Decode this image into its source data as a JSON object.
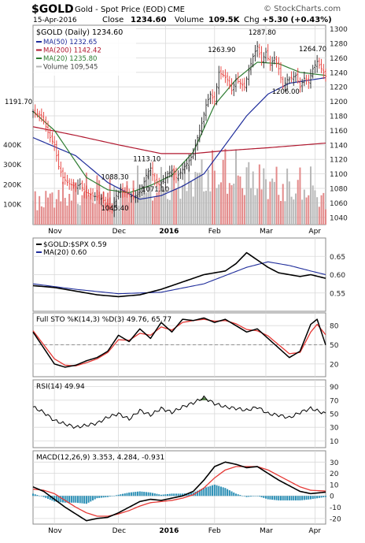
{
  "header": {
    "symbol": "$GOLD",
    "description": "Gold - Spot Price (EOD)",
    "exchange": "CME",
    "watermark": "© StockCharts.com",
    "date": "15-Apr-2016",
    "close_label": "Close",
    "close_value": "1234.60",
    "volume_label": "Volume",
    "volume_value": "109.5K",
    "chg_label": "Chg",
    "chg_value": "+5.30 (+0.43%)"
  },
  "colors": {
    "bg": "#ffffff",
    "grid": "#d9d9d9",
    "up": "#222222",
    "down": "#e53935",
    "ma50": "#1f2d9b",
    "ma200": "#b0182f",
    "ma20": "#2e7d32",
    "volume": "#b8b8b8",
    "volume_red": "#e38a8a",
    "black": "#000000",
    "blue_line": "#1f2d9b",
    "red_line": "#e53935",
    "rsi_up_fill": "#4a7a3b",
    "rsi_dn_fill": "#a8504a",
    "hist": "#2b8fb5"
  },
  "time_axis": {
    "labels": [
      "Nov",
      "Dec",
      "2016",
      "Feb",
      "Mar",
      "Apr"
    ],
    "positions": [
      10,
      40,
      62,
      85,
      109,
      132
    ]
  },
  "chart_data": [
    {
      "type": "candlestick",
      "title": "$GOLD (Daily) 1234.60",
      "legend": [
        {
          "name": "MA(50) 1232.65",
          "color": "ma50"
        },
        {
          "name": "MA(200) 1142.42",
          "color": "ma200"
        },
        {
          "name": "MA(20) 1235.80",
          "color": "ma20"
        },
        {
          "name": "Volume 109,545",
          "color": "volume"
        }
      ],
      "ylim": [
        1030,
        1305
      ],
      "yticks": [
        1040,
        1060,
        1080,
        1100,
        1120,
        1140,
        1160,
        1180,
        1200,
        1220,
        1240,
        1260,
        1280,
        1300
      ],
      "volume_ticks": [
        "100K",
        "200K",
        "300K",
        "400K"
      ],
      "volume_tick_values": [
        100,
        200,
        300,
        400
      ],
      "annotations": [
        {
          "text": "1191.70",
          "x": 1,
          "y": 1191.7
        },
        {
          "text": "1113.10",
          "x": 52,
          "y": 1113.1
        },
        {
          "text": "1088.30",
          "x": 37,
          "y": 1088.3
        },
        {
          "text": "1071.10",
          "x": 56,
          "y": 1071.1
        },
        {
          "text": "1045.40",
          "x": 37,
          "y": 1045.4
        },
        {
          "text": "1263.90",
          "x": 87,
          "y": 1263.9
        },
        {
          "text": "1287.80",
          "x": 106,
          "y": 1287.8
        },
        {
          "text": "1264.70",
          "x": 132,
          "y": 1264.7
        },
        {
          "text": "1206.00",
          "x": 117,
          "y": 1206.0
        }
      ],
      "close_anchors": [
        [
          0,
          1186
        ],
        [
          2,
          1182
        ],
        [
          4,
          1180
        ],
        [
          6,
          1165
        ],
        [
          8,
          1150
        ],
        [
          10,
          1140
        ],
        [
          12,
          1110
        ],
        [
          14,
          1095
        ],
        [
          16,
          1088
        ],
        [
          18,
          1085
        ],
        [
          20,
          1082
        ],
        [
          22,
          1086
        ],
        [
          24,
          1075
        ],
        [
          26,
          1073
        ],
        [
          28,
          1070
        ],
        [
          30,
          1068
        ],
        [
          32,
          1066
        ],
        [
          34,
          1060
        ],
        [
          36,
          1054
        ],
        [
          37,
          1050
        ],
        [
          39,
          1070
        ],
        [
          41,
          1078
        ],
        [
          43,
          1074
        ],
        [
          45,
          1070
        ],
        [
          47,
          1068
        ],
        [
          49,
          1072
        ],
        [
          51,
          1080
        ],
        [
          53,
          1098
        ],
        [
          55,
          1108
        ],
        [
          57,
          1090
        ],
        [
          59,
          1085
        ],
        [
          61,
          1090
        ],
        [
          63,
          1100
        ],
        [
          65,
          1105
        ],
        [
          67,
          1095
        ],
        [
          69,
          1102
        ],
        [
          71,
          1110
        ],
        [
          73,
          1118
        ],
        [
          75,
          1128
        ],
        [
          77,
          1150
        ],
        [
          79,
          1170
        ],
        [
          81,
          1195
        ],
        [
          83,
          1210
        ],
        [
          85,
          1200
        ],
        [
          87,
          1240
        ],
        [
          89,
          1236
        ],
        [
          91,
          1230
        ],
        [
          93,
          1215
        ],
        [
          95,
          1230
        ],
        [
          97,
          1225
        ],
        [
          99,
          1220
        ],
        [
          101,
          1242
        ],
        [
          103,
          1262
        ],
        [
          105,
          1276
        ],
        [
          107,
          1255
        ],
        [
          109,
          1268
        ],
        [
          111,
          1250
        ],
        [
          113,
          1260
        ],
        [
          115,
          1245
        ],
        [
          117,
          1220
        ],
        [
          119,
          1230
        ],
        [
          121,
          1232
        ],
        [
          123,
          1236
        ],
        [
          125,
          1220
        ],
        [
          127,
          1232
        ],
        [
          129,
          1226
        ],
        [
          131,
          1245
        ],
        [
          133,
          1255
        ],
        [
          135,
          1245
        ],
        [
          137,
          1234.6
        ]
      ],
      "ma50": [
        [
          0,
          1150
        ],
        [
          20,
          1125
        ],
        [
          35,
          1088
        ],
        [
          50,
          1065
        ],
        [
          60,
          1070
        ],
        [
          70,
          1083
        ],
        [
          80,
          1100
        ],
        [
          90,
          1140
        ],
        [
          100,
          1180
        ],
        [
          110,
          1210
        ],
        [
          120,
          1225
        ],
        [
          137,
          1232.65
        ]
      ],
      "ma200": [
        [
          0,
          1165
        ],
        [
          20,
          1153
        ],
        [
          40,
          1140
        ],
        [
          60,
          1128
        ],
        [
          75,
          1128
        ],
        [
          90,
          1132
        ],
        [
          110,
          1136
        ],
        [
          137,
          1142.42
        ]
      ],
      "ma20": [
        [
          0,
          1186
        ],
        [
          10,
          1160
        ],
        [
          25,
          1095
        ],
        [
          35,
          1078
        ],
        [
          45,
          1074
        ],
        [
          55,
          1084
        ],
        [
          65,
          1098
        ],
        [
          75,
          1130
        ],
        [
          85,
          1195
        ],
        [
          95,
          1230
        ],
        [
          105,
          1254
        ],
        [
          115,
          1252
        ],
        [
          125,
          1240
        ],
        [
          137,
          1235.8
        ]
      ],
      "volume_anchors": [
        [
          0,
          120
        ],
        [
          10,
          150
        ],
        [
          20,
          170
        ],
        [
          30,
          190
        ],
        [
          40,
          160
        ],
        [
          50,
          220
        ],
        [
          60,
          200
        ],
        [
          70,
          240
        ],
        [
          80,
          260
        ],
        [
          90,
          280
        ],
        [
          100,
          250
        ],
        [
          110,
          230
        ],
        [
          120,
          200
        ],
        [
          130,
          210
        ],
        [
          137,
          110
        ]
      ]
    },
    {
      "type": "line",
      "title": "$GOLD:$SPX 0.59",
      "series": [
        {
          "name": "$GOLD:$SPX 0.59",
          "color": "black"
        },
        {
          "name": "MA(20) 0.60",
          "color": "blue_line"
        }
      ],
      "ylim": [
        0.5,
        0.7
      ],
      "yticks": [
        0.55,
        0.6,
        0.65
      ],
      "ytick_labels": [
        "0.55",
        "0.60",
        "0.65"
      ],
      "values": [
        [
          0,
          0.57
        ],
        [
          10,
          0.565
        ],
        [
          20,
          0.555
        ],
        [
          30,
          0.545
        ],
        [
          40,
          0.54
        ],
        [
          50,
          0.545
        ],
        [
          60,
          0.56
        ],
        [
          70,
          0.58
        ],
        [
          80,
          0.6
        ],
        [
          90,
          0.61
        ],
        [
          95,
          0.63
        ],
        [
          100,
          0.66
        ],
        [
          105,
          0.64
        ],
        [
          110,
          0.62
        ],
        [
          115,
          0.605
        ],
        [
          120,
          0.6
        ],
        [
          125,
          0.595
        ],
        [
          130,
          0.6
        ],
        [
          137,
          0.59
        ]
      ],
      "ma": [
        [
          0,
          0.575
        ],
        [
          20,
          0.56
        ],
        [
          40,
          0.548
        ],
        [
          60,
          0.552
        ],
        [
          80,
          0.575
        ],
        [
          100,
          0.62
        ],
        [
          110,
          0.635
        ],
        [
          120,
          0.625
        ],
        [
          130,
          0.61
        ],
        [
          137,
          0.6
        ]
      ]
    },
    {
      "type": "line",
      "title": "Full STO %K(14,3) %D(3) 49.76, 65.77",
      "series": [
        {
          "name": "%K 49.76",
          "color": "black"
        },
        {
          "name": "%D 65.77",
          "color": "red_line"
        }
      ],
      "ylim": [
        0,
        100
      ],
      "yticks": [
        20,
        50,
        80
      ],
      "ytick_labels": [
        "20",
        "50",
        "80"
      ],
      "k": [
        [
          0,
          70
        ],
        [
          5,
          45
        ],
        [
          10,
          20
        ],
        [
          15,
          15
        ],
        [
          20,
          18
        ],
        [
          25,
          25
        ],
        [
          30,
          30
        ],
        [
          35,
          40
        ],
        [
          40,
          65
        ],
        [
          45,
          55
        ],
        [
          50,
          75
        ],
        [
          55,
          60
        ],
        [
          60,
          85
        ],
        [
          65,
          70
        ],
        [
          70,
          90
        ],
        [
          75,
          88
        ],
        [
          80,
          92
        ],
        [
          85,
          85
        ],
        [
          90,
          90
        ],
        [
          95,
          80
        ],
        [
          100,
          70
        ],
        [
          105,
          75
        ],
        [
          110,
          60
        ],
        [
          115,
          45
        ],
        [
          120,
          30
        ],
        [
          125,
          40
        ],
        [
          130,
          82
        ],
        [
          133,
          90
        ],
        [
          137,
          49.76
        ]
      ],
      "d": [
        [
          0,
          72
        ],
        [
          5,
          50
        ],
        [
          10,
          28
        ],
        [
          15,
          18
        ],
        [
          20,
          17
        ],
        [
          25,
          22
        ],
        [
          30,
          28
        ],
        [
          35,
          38
        ],
        [
          40,
          58
        ],
        [
          45,
          57
        ],
        [
          50,
          68
        ],
        [
          55,
          65
        ],
        [
          60,
          78
        ],
        [
          65,
          73
        ],
        [
          70,
          85
        ],
        [
          75,
          88
        ],
        [
          80,
          90
        ],
        [
          85,
          87
        ],
        [
          90,
          88
        ],
        [
          95,
          83
        ],
        [
          100,
          74
        ],
        [
          105,
          72
        ],
        [
          110,
          64
        ],
        [
          115,
          50
        ],
        [
          120,
          36
        ],
        [
          125,
          38
        ],
        [
          130,
          70
        ],
        [
          133,
          82
        ],
        [
          137,
          65.77
        ]
      ]
    },
    {
      "type": "line",
      "title": "RSI(14) 49.94",
      "series": [
        {
          "name": "RSI(14) 49.94",
          "color": "black"
        }
      ],
      "ylim": [
        0,
        100
      ],
      "yticks": [
        10,
        30,
        50,
        70,
        90
      ],
      "ytick_labels": [
        "10",
        "30",
        "50",
        "70",
        "90"
      ],
      "values": [
        [
          0,
          60
        ],
        [
          5,
          52
        ],
        [
          10,
          40
        ],
        [
          15,
          35
        ],
        [
          20,
          30
        ],
        [
          25,
          33
        ],
        [
          30,
          36
        ],
        [
          35,
          45
        ],
        [
          40,
          50
        ],
        [
          45,
          42
        ],
        [
          50,
          55
        ],
        [
          55,
          48
        ],
        [
          60,
          58
        ],
        [
          65,
          52
        ],
        [
          70,
          60
        ],
        [
          75,
          66
        ],
        [
          80,
          74
        ],
        [
          85,
          65
        ],
        [
          90,
          60
        ],
        [
          95,
          58
        ],
        [
          100,
          55
        ],
        [
          105,
          60
        ],
        [
          110,
          50
        ],
        [
          115,
          48
        ],
        [
          120,
          44
        ],
        [
          125,
          52
        ],
        [
          130,
          58
        ],
        [
          137,
          49.94
        ]
      ]
    },
    {
      "type": "line",
      "title": "MACD(12,26,9) 3.353, 4.284, -0.931",
      "series": [
        {
          "name": "MACD 3.353",
          "color": "black"
        },
        {
          "name": "Signal 4.284",
          "color": "red_line"
        },
        {
          "name": "Hist -0.931",
          "color": "hist"
        }
      ],
      "ylim": [
        -25,
        40
      ],
      "yticks": [
        -20,
        -10,
        0,
        10,
        20,
        30
      ],
      "ytick_labels": [
        "-20",
        "-10",
        "0",
        "10",
        "20",
        "30"
      ],
      "macd": [
        [
          0,
          8
        ],
        [
          5,
          4
        ],
        [
          10,
          -3
        ],
        [
          15,
          -10
        ],
        [
          20,
          -16
        ],
        [
          25,
          -22
        ],
        [
          30,
          -20
        ],
        [
          35,
          -19
        ],
        [
          40,
          -15
        ],
        [
          45,
          -10
        ],
        [
          50,
          -5
        ],
        [
          55,
          -3
        ],
        [
          60,
          -4
        ],
        [
          65,
          -2
        ],
        [
          70,
          0
        ],
        [
          75,
          4
        ],
        [
          80,
          14
        ],
        [
          85,
          26
        ],
        [
          90,
          30
        ],
        [
          95,
          28
        ],
        [
          100,
          25
        ],
        [
          105,
          26
        ],
        [
          110,
          20
        ],
        [
          115,
          14
        ],
        [
          120,
          9
        ],
        [
          125,
          4
        ],
        [
          130,
          2
        ],
        [
          137,
          3.35
        ]
      ],
      "signal": [
        [
          0,
          6
        ],
        [
          5,
          5
        ],
        [
          10,
          2
        ],
        [
          15,
          -4
        ],
        [
          20,
          -10
        ],
        [
          25,
          -15
        ],
        [
          30,
          -18
        ],
        [
          35,
          -18
        ],
        [
          40,
          -16
        ],
        [
          45,
          -13
        ],
        [
          50,
          -9
        ],
        [
          55,
          -6
        ],
        [
          60,
          -5
        ],
        [
          65,
          -4
        ],
        [
          70,
          -2
        ],
        [
          75,
          1
        ],
        [
          80,
          7
        ],
        [
          85,
          16
        ],
        [
          90,
          23
        ],
        [
          95,
          26
        ],
        [
          100,
          26
        ],
        [
          105,
          26
        ],
        [
          110,
          23
        ],
        [
          115,
          18
        ],
        [
          120,
          13
        ],
        [
          125,
          8
        ],
        [
          130,
          5
        ],
        [
          137,
          4.28
        ]
      ]
    }
  ]
}
